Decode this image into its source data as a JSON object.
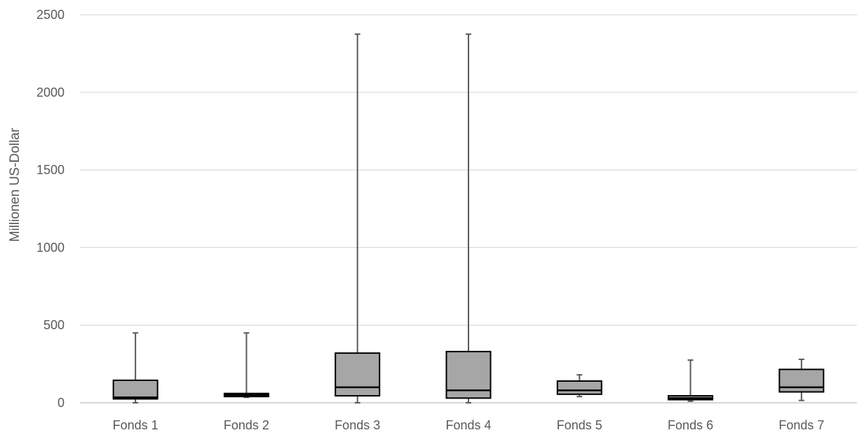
{
  "chart_data": {
    "type": "boxplot",
    "title": "",
    "xlabel": "",
    "ylabel": "Millionen US-Dollar",
    "ylim": [
      0,
      2500
    ],
    "yticks": [
      0,
      500,
      1000,
      1500,
      2000,
      2500
    ],
    "grid": true,
    "legend": "none",
    "colors": {
      "box_fill": "#a6a6a6",
      "box_stroke": "#000000",
      "whisker": "#595959",
      "grid": "#d9d9d9",
      "text": "#595959"
    },
    "categories": [
      "Fonds 1",
      "Fonds 2",
      "Fonds 3",
      "Fonds 4",
      "Fonds 5",
      "Fonds 6",
      "Fonds 7"
    ],
    "boxes": [
      {
        "label": "Fonds 1",
        "min": 0,
        "q1": 25,
        "median": 35,
        "q3": 145,
        "max": 450
      },
      {
        "label": "Fonds 2",
        "min": 35,
        "q1": 40,
        "median": 50,
        "q3": 60,
        "max": 450
      },
      {
        "label": "Fonds 3",
        "min": 0,
        "q1": 45,
        "median": 100,
        "q3": 320,
        "max": 2375
      },
      {
        "label": "Fonds 4",
        "min": 0,
        "q1": 30,
        "median": 80,
        "q3": 330,
        "max": 2375
      },
      {
        "label": "Fonds 5",
        "min": 40,
        "q1": 55,
        "median": 80,
        "q3": 140,
        "max": 180
      },
      {
        "label": "Fonds 6",
        "min": 10,
        "q1": 20,
        "median": 30,
        "q3": 45,
        "max": 275
      },
      {
        "label": "Fonds 7",
        "min": 15,
        "q1": 70,
        "median": 100,
        "q3": 215,
        "max": 280
      }
    ]
  }
}
